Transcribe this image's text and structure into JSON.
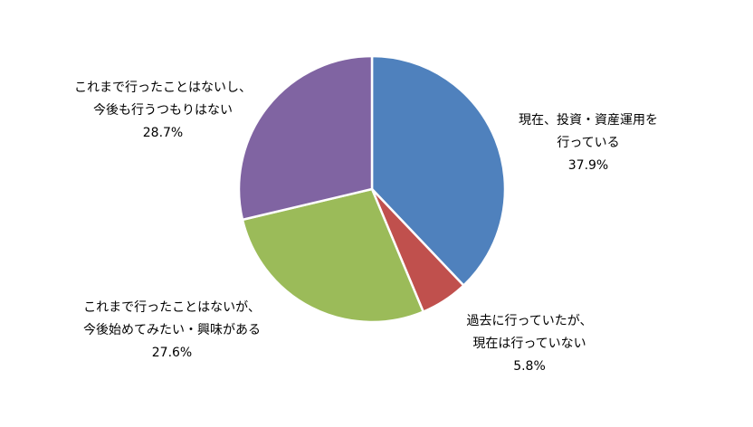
{
  "chart_data": {
    "type": "pie",
    "categories": [
      [
        "現在、投資・資産運用を",
        "行っている"
      ],
      [
        "過去に行っていたが、",
        "現在は行っていない"
      ],
      [
        "これまで行ったことはないが、",
        "今後始めてみたい・興味がある"
      ],
      [
        "これまで行ったことはないし、",
        "今後も行うつもりはない"
      ]
    ],
    "values": [
      37.9,
      5.8,
      27.6,
      28.7
    ],
    "value_labels": [
      "37.9%",
      "5.8%",
      "27.6%",
      "28.7%"
    ],
    "colors": [
      "#4f81bd",
      "#c0504d",
      "#9bbb59",
      "#8064a2"
    ]
  }
}
